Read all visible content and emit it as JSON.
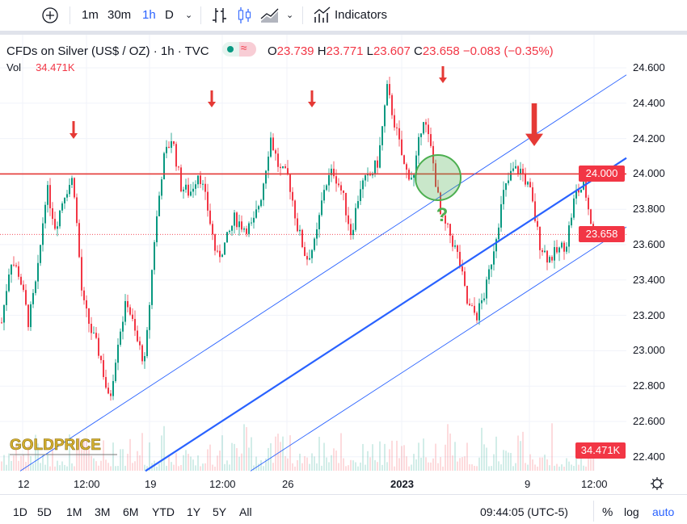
{
  "toolbar": {
    "intervals": [
      "1m",
      "30m",
      "1h",
      "D"
    ],
    "active_interval": "1h",
    "indicators_label": "Indicators"
  },
  "legend": {
    "symbol": "CFDs on Silver (US$ / OZ) · 1h · TVC",
    "open_label": "O",
    "open": "23.739",
    "high_label": "H",
    "high": "23.771",
    "low_label": "L",
    "low": "23.607",
    "close_label": "C",
    "close": "23.658",
    "change": "−0.083 (−0.35%)",
    "vol_label": "Vol",
    "vol": "34.471K"
  },
  "chart_data": {
    "type": "candlestick",
    "symbol": "CFDs on Silver (US$ / OZ)",
    "interval": "1h",
    "approx_closes": [
      23.16,
      23.52,
      23.43,
      23.16,
      23.43,
      23.93,
      23.7,
      23.89,
      23.98,
      23.29,
      23.11,
      22.97,
      22.7,
      23.07,
      23.29,
      23.07,
      22.93,
      23.61,
      24.07,
      24.21,
      23.93,
      23.89,
      24.02,
      23.8,
      23.52,
      23.61,
      23.75,
      23.7,
      23.7,
      23.89,
      24.21,
      24.02,
      23.98,
      23.7,
      23.52,
      23.61,
      23.93,
      24.02,
      23.89,
      23.66,
      23.93,
      23.98,
      24.07,
      24.48,
      24.25,
      24.02,
      23.98,
      24.34,
      24.11,
      23.75,
      23.66,
      23.52,
      23.25,
      23.2,
      23.34,
      23.61,
      23.89,
      24.02,
      24.02,
      23.89,
      23.61,
      23.52,
      23.56,
      23.61,
      23.89,
      23.93,
      23.66
    ],
    "y_ticks": [
      "24.600",
      "24.400",
      "24.200",
      "24.000",
      "23.800",
      "23.600",
      "23.400",
      "23.200",
      "23.000",
      "22.800",
      "22.600",
      "22.400"
    ],
    "ylim": [
      22.35,
      24.72
    ],
    "x_ticks": [
      "12",
      "12:00",
      "19",
      "12:00",
      "26",
      "2023",
      "9",
      "12:00"
    ],
    "last_price": "23.658",
    "volume_last": "34.471K",
    "annotations": {
      "horizontal_level": {
        "price": 24.0,
        "label": "24.000",
        "color": "#e53935"
      },
      "channel_color": "#2962ff",
      "channel_upper": [
        22.32,
        24.56
      ],
      "channel_mid": [
        22.32,
        24.09
      ],
      "channel_lower": [
        22.32,
        23.7
      ],
      "question_mark": "?",
      "circle_color": "#4caf50",
      "arrow_color": "#e53935"
    },
    "colors": {
      "up": "#089981",
      "down": "#f23645"
    }
  },
  "watermark": "GOLDPRICE EST. 2002",
  "bottom": {
    "ranges": [
      "1D",
      "5D",
      "1M",
      "3M",
      "6M",
      "YTD",
      "1Y",
      "5Y",
      "All"
    ],
    "time": "09:44:05 (UTC-5)",
    "pct": "%",
    "log": "log",
    "auto": "auto"
  }
}
